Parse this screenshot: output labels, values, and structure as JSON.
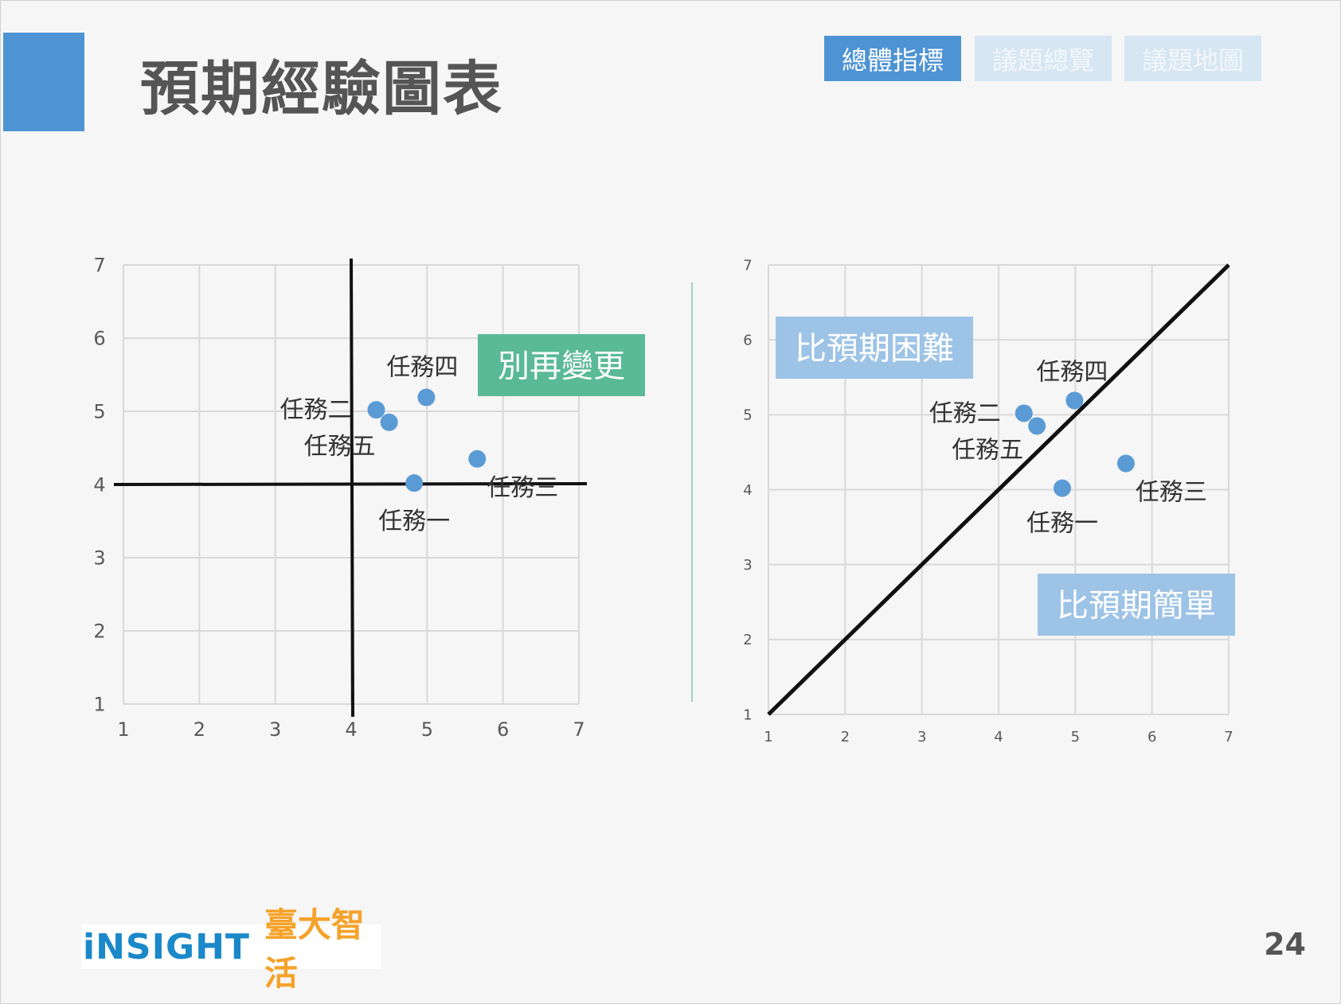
{
  "slide": {
    "title": "預期經驗圖表",
    "page_number": "24"
  },
  "nav": {
    "tabs": [
      {
        "label": "總體指標",
        "active": true
      },
      {
        "label": "議題總覽",
        "active": false
      },
      {
        "label": "議題地圖",
        "active": false
      }
    ]
  },
  "logo": {
    "text_en": "iNSIGHT",
    "text_zh": "臺大智活"
  },
  "colors": {
    "accent": "#4e94d4",
    "point": "#5b9bd5",
    "green_label": "#5ab997",
    "blue_label": "#9dc3e6",
    "nav_inactive": "#d6e6f3",
    "title_text": "#555555",
    "logo_blue": "#1b88c9",
    "logo_orange": "#f5a22a"
  },
  "chart_data": [
    {
      "type": "scatter",
      "title": "",
      "xlabel": "",
      "ylabel": "",
      "xlim": [
        1,
        7
      ],
      "ylim": [
        1,
        7
      ],
      "xticks": [
        1,
        2,
        3,
        4,
        5,
        6,
        7
      ],
      "yticks": [
        1,
        2,
        3,
        4,
        5,
        6,
        7
      ],
      "grid": true,
      "reference_lines": {
        "x": 4,
        "y": 4
      },
      "points": [
        {
          "label": "任務一",
          "x": 4.83,
          "y": 4.02
        },
        {
          "label": "任務二",
          "x": 4.33,
          "y": 5.02
        },
        {
          "label": "任務三",
          "x": 5.66,
          "y": 4.35
        },
        {
          "label": "任務四",
          "x": 4.99,
          "y": 5.19
        },
        {
          "label": "任務五",
          "x": 4.5,
          "y": 4.85
        }
      ],
      "annotations": [
        {
          "text": "別再變更",
          "style": "green"
        }
      ]
    },
    {
      "type": "scatter",
      "title": "",
      "xlabel": "",
      "ylabel": "",
      "xlim": [
        1,
        7
      ],
      "ylim": [
        1,
        7
      ],
      "xticks": [
        1,
        2,
        3,
        4,
        5,
        6,
        7
      ],
      "yticks": [
        1,
        2,
        3,
        4,
        5,
        6,
        7
      ],
      "grid": true,
      "diagonal_line": true,
      "points": [
        {
          "label": "任務一",
          "x": 4.83,
          "y": 4.02
        },
        {
          "label": "任務二",
          "x": 4.33,
          "y": 5.02
        },
        {
          "label": "任務三",
          "x": 5.66,
          "y": 4.35
        },
        {
          "label": "任務四",
          "x": 4.99,
          "y": 5.19
        },
        {
          "label": "任務五",
          "x": 4.5,
          "y": 4.85
        }
      ],
      "annotations": [
        {
          "text": "比預期困難",
          "style": "blue"
        },
        {
          "text": "比預期簡單",
          "style": "blue"
        }
      ]
    }
  ]
}
